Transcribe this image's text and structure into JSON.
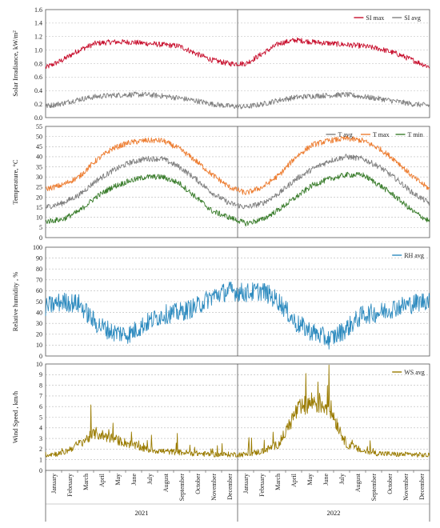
{
  "years": [
    "2021",
    "2022"
  ],
  "months": [
    "January",
    "February",
    "March",
    "April",
    "May",
    "June",
    "July",
    "August",
    "September",
    "October",
    "November",
    "December"
  ],
  "chart_data": [
    {
      "type": "line",
      "ylabel": "Solar Irradiance, kW/m²",
      "ylim": [
        0.0,
        1.6
      ],
      "yticks": [
        "0.0",
        "0.2",
        "0.4",
        "0.6",
        "0.8",
        "1.0",
        "1.2",
        "1.4",
        "1.6"
      ],
      "grid": true,
      "legend": "top-right",
      "x_unit": "month (Jan 2021 – Dec 2022, monthly samples)",
      "series": [
        {
          "name": "SI max",
          "color": "#c8102e",
          "values": [
            0.74,
            0.85,
            1.0,
            1.1,
            1.12,
            1.12,
            1.1,
            1.08,
            1.06,
            0.95,
            0.85,
            0.8,
            0.8,
            0.95,
            1.1,
            1.15,
            1.12,
            1.1,
            1.08,
            1.06,
            1.02,
            0.95,
            0.85,
            0.75
          ]
        },
        {
          "name": "SI avg",
          "color": "#808080",
          "values": [
            0.17,
            0.21,
            0.27,
            0.31,
            0.33,
            0.34,
            0.34,
            0.32,
            0.29,
            0.25,
            0.2,
            0.17,
            0.16,
            0.2,
            0.26,
            0.3,
            0.32,
            0.33,
            0.34,
            0.31,
            0.28,
            0.24,
            0.2,
            0.18
          ]
        }
      ]
    },
    {
      "type": "line",
      "ylabel": "Temperature, °C",
      "ylim": [
        0,
        55
      ],
      "yticks": [
        "0",
        "5",
        "10",
        "15",
        "20",
        "25",
        "30",
        "35",
        "40",
        "45",
        "50",
        "55"
      ],
      "grid": true,
      "legend": "top-right",
      "series": [
        {
          "name": "T avg",
          "color": "#7f7f7f",
          "values": [
            15,
            17,
            21,
            28,
            33,
            37,
            39,
            39,
            35,
            29,
            22,
            17,
            15,
            17,
            22,
            29,
            34,
            38,
            40,
            39,
            35,
            29,
            22,
            17
          ]
        },
        {
          "name": "T max",
          "color": "#ed7d31",
          "values": [
            24,
            26,
            30,
            38,
            44,
            47,
            48,
            48,
            44,
            38,
            31,
            25,
            22,
            25,
            31,
            40,
            46,
            48,
            49,
            48,
            44,
            38,
            30,
            24
          ]
        },
        {
          "name": "T min",
          "color": "#3a7d2c",
          "values": [
            8,
            9,
            13,
            20,
            25,
            28,
            30,
            30,
            27,
            20,
            13,
            10,
            7,
            9,
            14,
            20,
            26,
            29,
            31,
            31,
            26,
            20,
            13,
            8
          ]
        }
      ]
    },
    {
      "type": "line",
      "ylabel": "Relative humidity , %",
      "ylim": [
        0,
        100
      ],
      "yticks": [
        "0",
        "10",
        "20",
        "30",
        "40",
        "50",
        "60",
        "70",
        "80",
        "90",
        "100"
      ],
      "grid": true,
      "legend": "top-right",
      "series": [
        {
          "name": "RH avg",
          "color": "#2e8bbf",
          "values": [
            45,
            50,
            48,
            30,
            22,
            20,
            30,
            38,
            40,
            45,
            55,
            60,
            58,
            60,
            50,
            30,
            22,
            15,
            25,
            38,
            40,
            45,
            48,
            52
          ]
        }
      ]
    },
    {
      "type": "line",
      "ylabel": "Wind Speed , km/h",
      "ylim": [
        0,
        10
      ],
      "yticks": [
        "0",
        "1",
        "2",
        "3",
        "4",
        "5",
        "6",
        "7",
        "8",
        "9",
        "10"
      ],
      "grid": true,
      "legend": "top-right",
      "series": [
        {
          "name": "WS avg",
          "color": "#9a7b00",
          "values": [
            1.5,
            1.6,
            2.5,
            3.5,
            3.0,
            2.5,
            2.0,
            1.8,
            1.7,
            1.6,
            1.5,
            1.5,
            1.5,
            1.8,
            2.5,
            5.5,
            6.5,
            6.0,
            2.5,
            1.8,
            1.6,
            1.5,
            1.5,
            1.4
          ]
        }
      ]
    }
  ]
}
